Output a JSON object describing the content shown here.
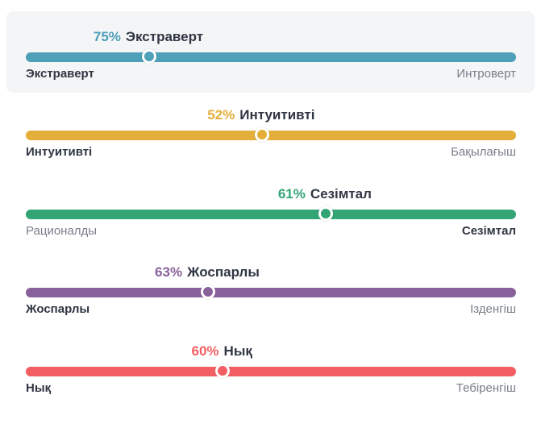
{
  "traits": [
    {
      "percent": 75,
      "percent_text": "75%",
      "label": "Экстраверт",
      "left": "Экстраверт",
      "right": "Интроверт",
      "color": "#4e9fb8",
      "highlighted": true
    },
    {
      "percent": 52,
      "percent_text": "52%",
      "label": "Интуитивті",
      "left": "Интуитивті",
      "right": "Бақылағыш",
      "color": "#e4ae3a",
      "highlighted": false
    },
    {
      "percent": 61,
      "percent_text": "61%",
      "label": "Сезімтал",
      "left": "Рационалды",
      "right": "Сезімтал",
      "color": "#33a474",
      "highlighted": false
    },
    {
      "percent": 63,
      "percent_text": "63%",
      "label": "Жоспарлы",
      "left": "Жоспарлы",
      "right": "Ізденгіш",
      "color": "#88619a",
      "highlighted": false
    },
    {
      "percent": 60,
      "percent_text": "60%",
      "label": "Нық",
      "left": "Нық",
      "right": "Тебіренгіш",
      "color": "#f25e62",
      "highlighted": false
    }
  ]
}
